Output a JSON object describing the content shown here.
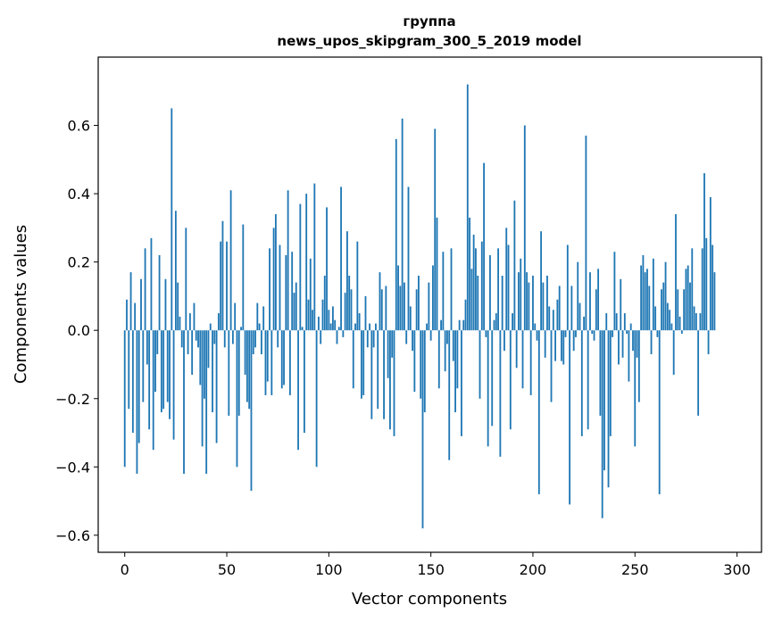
{
  "chart_data": {
    "type": "bar",
    "title_line1": "группа",
    "title_line2": "news_upos_skipgram_300_5_2019 model",
    "xlabel": "Vector components",
    "ylabel": "Components values",
    "xlim": [
      -13,
      312
    ],
    "ylim": [
      -0.65,
      0.8
    ],
    "xticks": [
      0,
      50,
      100,
      150,
      200,
      250,
      300
    ],
    "xtick_labels": [
      "0",
      "50",
      "100",
      "150",
      "200",
      "250",
      "300"
    ],
    "yticks": [
      -0.6,
      -0.4,
      -0.2,
      0.0,
      0.2,
      0.4,
      0.6
    ],
    "ytick_labels": [
      "−0.6",
      "−0.4",
      "−0.2",
      "0.0",
      "0.2",
      "0.4",
      "0.6"
    ],
    "bar_color": "#1f77b4",
    "values": [
      -0.4,
      0.09,
      -0.23,
      0.17,
      -0.3,
      0.08,
      -0.42,
      -0.33,
      0.15,
      -0.21,
      0.24,
      -0.1,
      -0.29,
      0.27,
      -0.35,
      -0.18,
      -0.07,
      0.22,
      -0.24,
      -0.23,
      0.15,
      -0.21,
      -0.26,
      0.65,
      -0.32,
      0.35,
      0.14,
      0.04,
      -0.05,
      -0.42,
      0.3,
      -0.07,
      0.05,
      -0.13,
      0.08,
      -0.03,
      -0.05,
      -0.16,
      -0.34,
      -0.2,
      -0.42,
      -0.11,
      0.02,
      -0.24,
      -0.04,
      -0.33,
      0.05,
      0.26,
      0.32,
      -0.05,
      0.26,
      -0.25,
      0.41,
      -0.04,
      0.08,
      -0.4,
      -0.25,
      0.01,
      0.31,
      -0.13,
      -0.21,
      -0.23,
      -0.47,
      -0.07,
      -0.05,
      0.08,
      0.02,
      -0.07,
      0.07,
      -0.19,
      -0.15,
      0.24,
      -0.19,
      0.3,
      0.34,
      -0.05,
      0.25,
      -0.17,
      -0.16,
      0.22,
      0.41,
      -0.19,
      0.23,
      0.11,
      0.14,
      -0.35,
      0.37,
      0.01,
      -0.3,
      0.4,
      0.09,
      0.21,
      0.06,
      0.43,
      -0.4,
      0.04,
      -0.04,
      0.09,
      0.16,
      0.36,
      0.06,
      0.02,
      0.07,
      0.03,
      -0.04,
      0.01,
      0.42,
      -0.02,
      0.11,
      0.29,
      0.16,
      0.12,
      -0.17,
      0.02,
      0.26,
      0.05,
      -0.2,
      -0.19,
      0.1,
      -0.05,
      0.02,
      -0.26,
      -0.05,
      0.02,
      -0.23,
      0.17,
      0.12,
      -0.26,
      0.13,
      -0.14,
      -0.29,
      -0.08,
      -0.31,
      0.56,
      0.19,
      0.13,
      0.62,
      0.14,
      -0.04,
      0.42,
      0.07,
      -0.06,
      -0.18,
      0.12,
      0.16,
      -0.2,
      -0.58,
      -0.24,
      0.02,
      0.14,
      -0.03,
      0.19,
      0.59,
      0.33,
      -0.17,
      0.03,
      0.23,
      -0.12,
      -0.04,
      -0.38,
      0.24,
      -0.09,
      -0.24,
      -0.17,
      0.03,
      -0.31,
      0.03,
      0.09,
      0.72,
      0.33,
      0.18,
      0.28,
      0.24,
      0.16,
      -0.2,
      0.26,
      0.49,
      -0.02,
      -0.34,
      0.22,
      -0.28,
      0.03,
      0.05,
      0.24,
      -0.37,
      0.16,
      -0.06,
      0.3,
      0.25,
      -0.29,
      0.05,
      0.38,
      -0.11,
      0.17,
      0.21,
      -0.17,
      0.6,
      0.17,
      0.14,
      -0.19,
      0.16,
      0.02,
      -0.03,
      -0.48,
      0.29,
      0.14,
      -0.08,
      0.16,
      0.07,
      -0.21,
      0.06,
      -0.09,
      0.09,
      0.13,
      -0.09,
      -0.1,
      -0.02,
      0.25,
      -0.51,
      0.13,
      -0.06,
      -0.02,
      0.2,
      0.08,
      -0.31,
      0.04,
      0.57,
      -0.29,
      0.17,
      -0.01,
      -0.03,
      0.12,
      0.18,
      -0.25,
      -0.55,
      -0.41,
      0.05,
      -0.46,
      -0.31,
      -0.02,
      0.23,
      0.05,
      -0.1,
      0.15,
      -0.08,
      0.05,
      -0.01,
      -0.15,
      0.02,
      -0.06,
      -0.34,
      -0.08,
      -0.21,
      0.19,
      0.22,
      0.17,
      0.18,
      0.13,
      -0.07,
      0.21,
      0.07,
      -0.02,
      -0.48,
      0.12,
      0.14,
      0.2,
      0.08,
      0.06,
      0.02,
      -0.13,
      0.34,
      0.12,
      0.04,
      -0.01,
      0.12,
      0.18,
      0.19,
      0.14,
      0.24,
      0.07,
      0.05,
      -0.25,
      0.05,
      0.24,
      0.46,
      0.27,
      -0.07,
      0.39,
      0.25,
      0.17
    ]
  }
}
